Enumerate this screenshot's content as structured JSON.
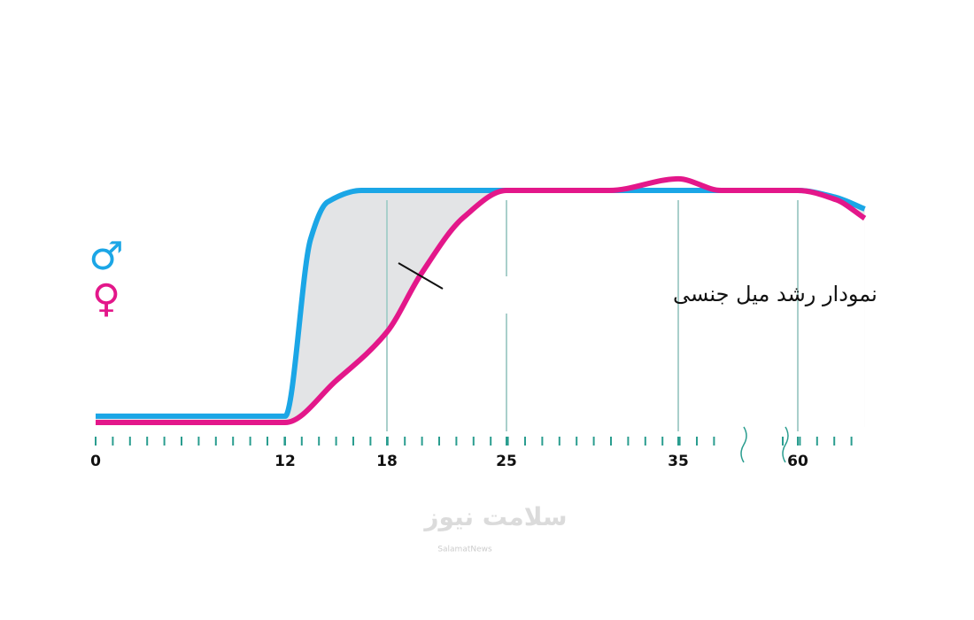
{
  "chart_data": {
    "type": "line",
    "annotation": "نمودار رشد میل جنسی",
    "x_break": [
      35,
      60
    ],
    "xlim": [
      0,
      74
    ],
    "ylim": [
      0,
      100
    ],
    "xticks": [
      0,
      12,
      18,
      25,
      35,
      60
    ],
    "grid": true,
    "series": [
      {
        "name": "♂",
        "color": "#1ba6e6",
        "x": [
          0,
          12,
          13.5,
          14.5,
          16.5,
          60,
          68,
          74
        ],
        "values": [
          2.7,
          2.7,
          79,
          95,
          100,
          100,
          97,
          92
        ]
      },
      {
        "name": "♀",
        "color": "#e3178a",
        "x": [
          0,
          12,
          15,
          18,
          20,
          22.5,
          25,
          31,
          35,
          44,
          60,
          68,
          74
        ],
        "values": [
          0,
          0,
          18,
          39,
          64,
          88.5,
          100,
          100,
          105,
          100,
          100,
          96,
          88
        ]
      }
    ]
  },
  "watermark": {
    "title": "سلامت نیوز",
    "subtitle": "SalamatNews"
  }
}
